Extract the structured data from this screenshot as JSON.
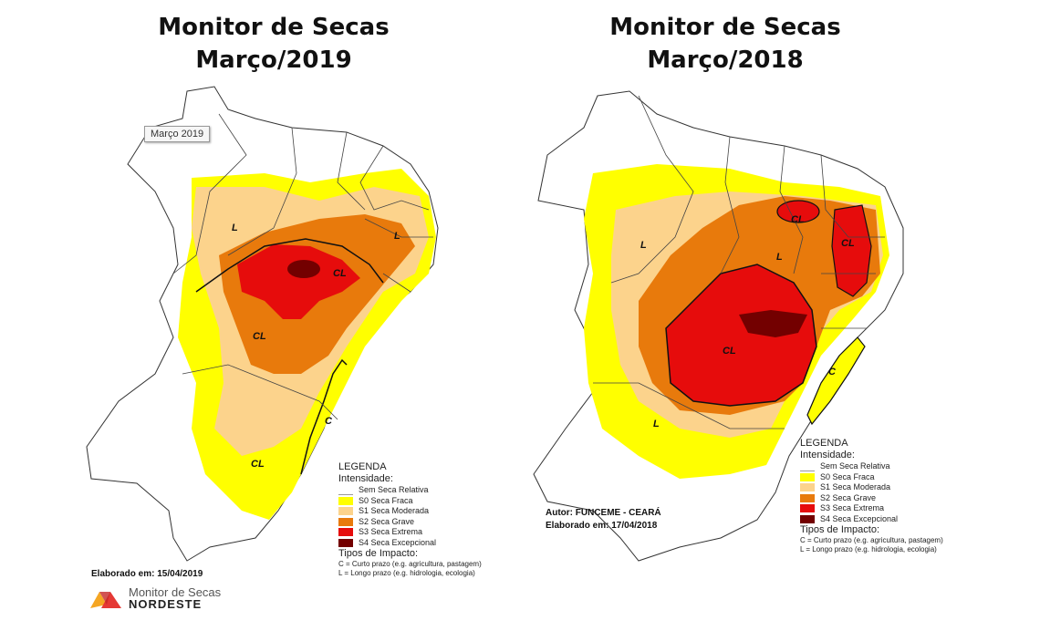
{
  "left_map": {
    "title_line1": "Monitor de Secas",
    "title_line2": "Março/2019",
    "tag": "Março 2019",
    "zone_labels": [
      "L",
      "CL",
      "CL",
      "C",
      "CL",
      "L"
    ],
    "credit": "Elaborado em: 15/04/2019",
    "logo": {
      "line1": "Monitor de Secas",
      "line2": "NORDESTE"
    }
  },
  "right_map": {
    "title_line1": "Monitor de Secas",
    "title_line2": "Março/2018",
    "zone_labels": [
      "CL",
      "CL",
      "L",
      "L",
      "CL",
      "C",
      "L"
    ],
    "author": "Autor: FUNCEME - CEARÁ",
    "credit": "Elaborado em: 17/04/2018"
  },
  "legend": {
    "title": "LEGENDA",
    "intensity_heading": "Intensidade:",
    "items": [
      {
        "label": "Sem Seca Relativa",
        "color": "#ffffff"
      },
      {
        "label": "S0 Seca Fraca",
        "color": "#ffff00"
      },
      {
        "label": "S1 Seca Moderada",
        "color": "#fcd38c"
      },
      {
        "label": "S2 Seca Grave",
        "color": "#e87a0c"
      },
      {
        "label": "S3 Seca Extrema",
        "color": "#e60c0c"
      },
      {
        "label": "S4 Seca Excepcional",
        "color": "#730000"
      }
    ],
    "impact_heading": "Tipos de Impacto:",
    "impact_items": [
      "C = Curto prazo (e.g. agricultura, pastagem)",
      "L = Longo prazo (e.g. hidrologia, ecologia)"
    ]
  }
}
